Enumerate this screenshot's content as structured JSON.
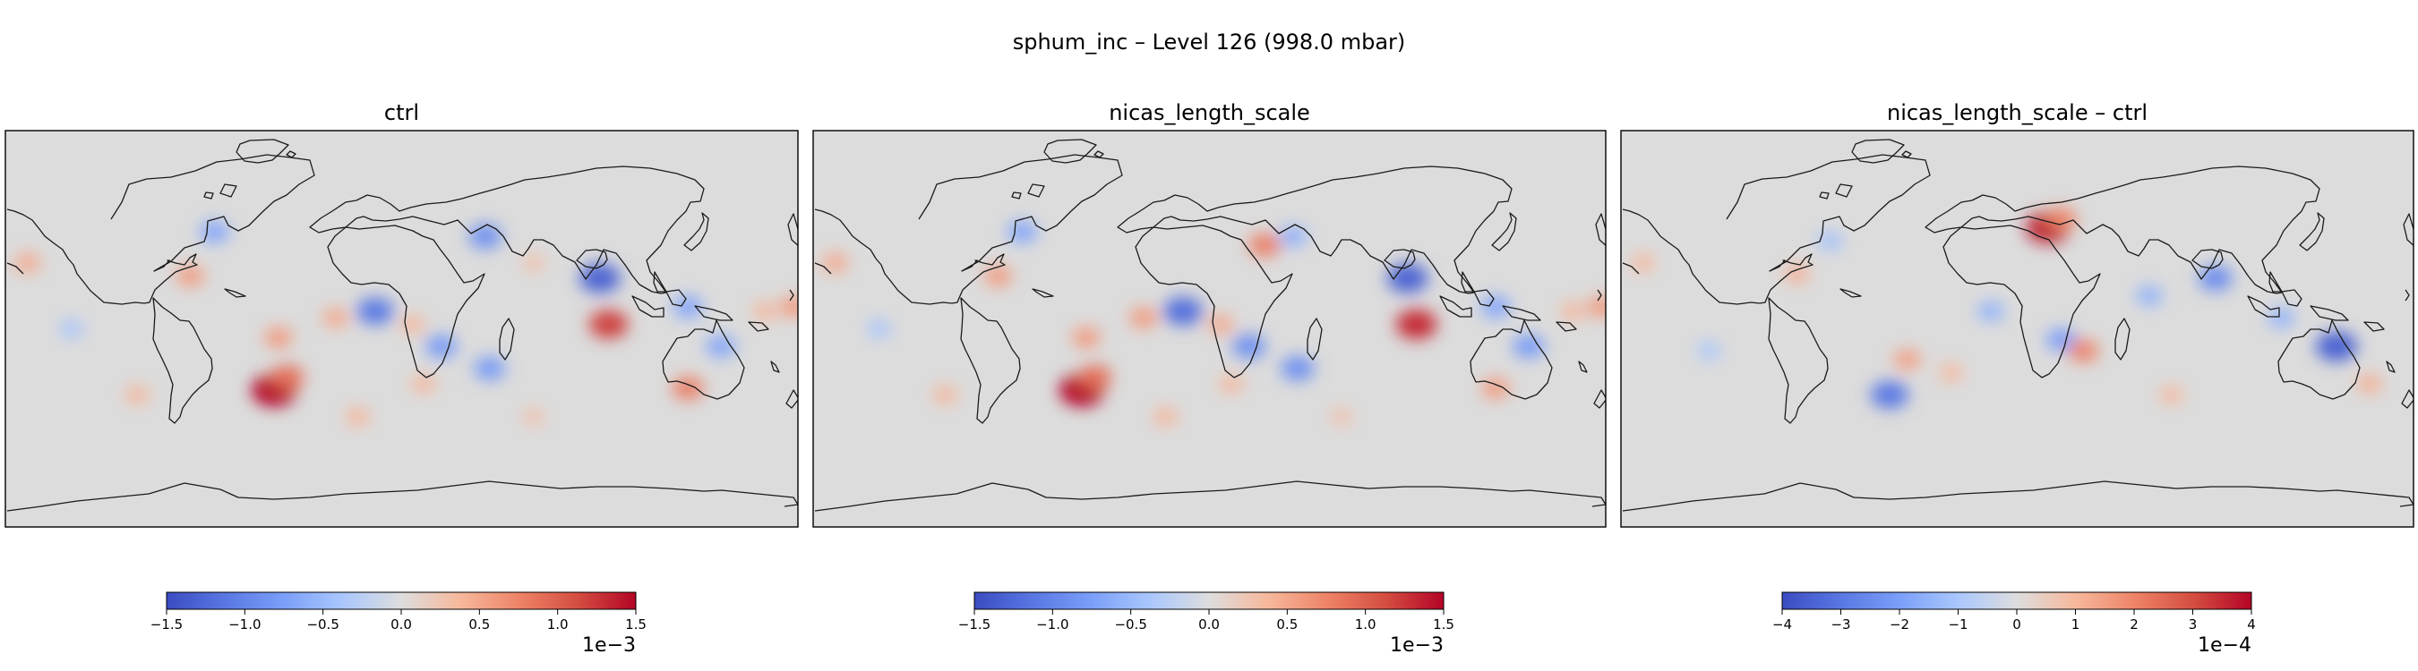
{
  "figure": {
    "suptitle": "sphum_inc – Level 126 (998.0 mbar)"
  },
  "chart_data": [
    {
      "type": "heatmap",
      "title": "ctrl",
      "field": "sphum_inc",
      "colormap": "coolwarm",
      "projection": "PlateCarree (global, coastlines)",
      "colorbar": {
        "orientation": "horizontal",
        "vmin": -1.5,
        "vmax": 1.5,
        "ticks": [
          -1.5,
          -1.0,
          -0.5,
          0.0,
          0.5,
          1.0,
          1.5
        ],
        "tick_labels": [
          "−1.5",
          "−1.0",
          "−0.5",
          "0.0",
          "0.5",
          "1.0",
          "1.5"
        ],
        "multiplier": "1e−3"
      },
      "features": [
        {
          "lon": -58,
          "lat": -28,
          "value": 1.5
        },
        {
          "lon": -52,
          "lat": -22,
          "value": 0.9
        },
        {
          "lon": -96,
          "lat": 24,
          "value": 0.6
        },
        {
          "lon": -85,
          "lat": 44,
          "value": -0.7
        },
        {
          "lon": -56,
          "lat": -4,
          "value": 0.6
        },
        {
          "lon": -30,
          "lat": 5,
          "value": 0.5
        },
        {
          "lon": -12,
          "lat": 8,
          "value": -1.1
        },
        {
          "lon": 5,
          "lat": 2,
          "value": 0.4
        },
        {
          "lon": 18,
          "lat": -8,
          "value": -0.8
        },
        {
          "lon": 10,
          "lat": -25,
          "value": 0.4
        },
        {
          "lon": 40,
          "lat": -18,
          "value": -0.8
        },
        {
          "lon": 38,
          "lat": 42,
          "value": -0.9
        },
        {
          "lon": 60,
          "lat": 30,
          "value": 0.3
        },
        {
          "lon": 90,
          "lat": 23,
          "value": -1.3
        },
        {
          "lon": 94,
          "lat": 2,
          "value": 1.2
        },
        {
          "lon": 130,
          "lat": 10,
          "value": -0.7
        },
        {
          "lon": 145,
          "lat": -8,
          "value": -0.7
        },
        {
          "lon": 165,
          "lat": 8,
          "value": 0.4
        },
        {
          "lon": 130,
          "lat": -27,
          "value": 0.8
        },
        {
          "lon": -150,
          "lat": 0,
          "value": -0.4
        },
        {
          "lon": -170,
          "lat": 30,
          "value": 0.5
        },
        {
          "lon": -120,
          "lat": -30,
          "value": 0.4
        },
        {
          "lon": -20,
          "lat": -40,
          "value": 0.4
        },
        {
          "lon": 60,
          "lat": -40,
          "value": 0.3
        },
        {
          "lon": 178,
          "lat": 10,
          "value": 0.6
        }
      ]
    },
    {
      "type": "heatmap",
      "title": "nicas_length_scale",
      "field": "sphum_inc",
      "colormap": "coolwarm",
      "projection": "PlateCarree (global, coastlines)",
      "colorbar": {
        "orientation": "horizontal",
        "vmin": -1.5,
        "vmax": 1.5,
        "ticks": [
          -1.5,
          -1.0,
          -0.5,
          0.0,
          0.5,
          1.0,
          1.5
        ],
        "tick_labels": [
          "−1.5",
          "−1.0",
          "−0.5",
          "0.0",
          "0.5",
          "1.0",
          "1.5"
        ],
        "multiplier": "1e−3"
      },
      "features": [
        {
          "lon": -58,
          "lat": -28,
          "value": 1.5
        },
        {
          "lon": -52,
          "lat": -22,
          "value": 0.9
        },
        {
          "lon": -96,
          "lat": 24,
          "value": 0.6
        },
        {
          "lon": -85,
          "lat": 44,
          "value": -0.7
        },
        {
          "lon": -56,
          "lat": -4,
          "value": 0.6
        },
        {
          "lon": -30,
          "lat": 5,
          "value": 0.6
        },
        {
          "lon": -12,
          "lat": 8,
          "value": -1.2
        },
        {
          "lon": 5,
          "lat": 2,
          "value": 0.5
        },
        {
          "lon": 18,
          "lat": -8,
          "value": -0.9
        },
        {
          "lon": 10,
          "lat": -25,
          "value": 0.4
        },
        {
          "lon": 40,
          "lat": -18,
          "value": -0.9
        },
        {
          "lon": 38,
          "lat": 42,
          "value": -0.6
        },
        {
          "lon": 25,
          "lat": 38,
          "value": 0.8
        },
        {
          "lon": 90,
          "lat": 23,
          "value": -1.3
        },
        {
          "lon": 94,
          "lat": 2,
          "value": 1.3
        },
        {
          "lon": 130,
          "lat": 10,
          "value": -0.7
        },
        {
          "lon": 145,
          "lat": -8,
          "value": -0.8
        },
        {
          "lon": 165,
          "lat": 8,
          "value": 0.4
        },
        {
          "lon": 130,
          "lat": -27,
          "value": 0.6
        },
        {
          "lon": -150,
          "lat": 0,
          "value": -0.4
        },
        {
          "lon": -170,
          "lat": 30,
          "value": 0.5
        },
        {
          "lon": -120,
          "lat": -30,
          "value": 0.4
        },
        {
          "lon": -20,
          "lat": -40,
          "value": 0.4
        },
        {
          "lon": 60,
          "lat": -40,
          "value": 0.3
        },
        {
          "lon": 178,
          "lat": 10,
          "value": 0.6
        }
      ]
    },
    {
      "type": "heatmap",
      "title": "nicas_length_scale – ctrl",
      "field": "sphum_inc",
      "colormap": "coolwarm",
      "projection": "PlateCarree (global, coastlines)",
      "colorbar": {
        "orientation": "horizontal",
        "vmin": -4,
        "vmax": 4,
        "ticks": [
          -4,
          -3,
          -2,
          -1,
          0,
          1,
          2,
          3,
          4
        ],
        "tick_labels": [
          "−4",
          "−3",
          "−2",
          "−1",
          "0",
          "1",
          "2",
          "3",
          "4"
        ],
        "multiplier": "1e−4"
      },
      "features": [
        {
          "lon": 14,
          "lat": 46,
          "value": 3.8
        },
        {
          "lon": 20,
          "lat": 50,
          "value": 2.0
        },
        {
          "lon": 90,
          "lat": 23,
          "value": -2.5
        },
        {
          "lon": 145,
          "lat": -8,
          "value": -3.5
        },
        {
          "lon": -58,
          "lat": -30,
          "value": -3.0
        },
        {
          "lon": -50,
          "lat": -14,
          "value": 1.5
        },
        {
          "lon": -12,
          "lat": 8,
          "value": -1.5
        },
        {
          "lon": 20,
          "lat": -5,
          "value": -2.0
        },
        {
          "lon": 30,
          "lat": -10,
          "value": 2.0
        },
        {
          "lon": 60,
          "lat": 15,
          "value": -1.5
        },
        {
          "lon": -100,
          "lat": 25,
          "value": 1.2
        },
        {
          "lon": -85,
          "lat": 40,
          "value": -1.2
        },
        {
          "lon": -170,
          "lat": 30,
          "value": 1.0
        },
        {
          "lon": 120,
          "lat": 5,
          "value": -1.5
        },
        {
          "lon": 160,
          "lat": -25,
          "value": 1.2
        },
        {
          "lon": -30,
          "lat": -20,
          "value": 1.0
        },
        {
          "lon": 70,
          "lat": -30,
          "value": 1.0
        },
        {
          "lon": -140,
          "lat": -10,
          "value": -1.0
        }
      ]
    }
  ]
}
